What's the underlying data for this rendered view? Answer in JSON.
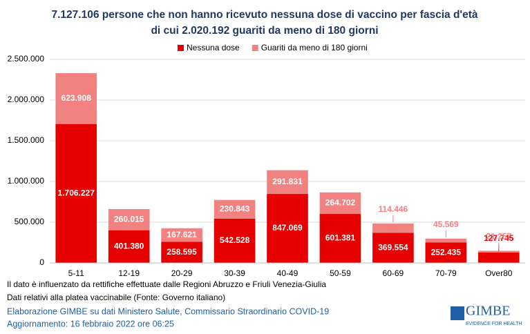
{
  "chart_data": {
    "type": "bar",
    "stacked": true,
    "title": "7.127.106 persone che non hanno ricevuto nessuna dose di vaccino per fascia d'età",
    "subtitle": "di cui 2.020.192 guariti da meno di 180 giorni",
    "categories": [
      "5-11",
      "12-19",
      "20-29",
      "30-39",
      "40-49",
      "50-59",
      "60-69",
      "70-79",
      "Over80"
    ],
    "series": [
      {
        "name": "Nessuna dose",
        "color": "#e60000",
        "values": [
          1706227,
          401380,
          258595,
          542528,
          847069,
          601381,
          369554,
          252435,
          127745
        ],
        "value_labels": [
          "1.706.227",
          "401.380",
          "258.595",
          "542.528",
          "847.069",
          "601.381",
          "369.554",
          "252.435",
          "127.745"
        ]
      },
      {
        "name": "Guariti da meno di 180 giorni",
        "color": "#f28282",
        "values": [
          623908,
          260015,
          167621,
          230843,
          291831,
          264702,
          114446,
          45569,
          21257
        ],
        "value_labels": [
          "623.908",
          "260.015",
          "167.621",
          "230.843",
          "291.831",
          "264.702",
          "114.446",
          "45.569",
          "21.257"
        ]
      }
    ],
    "ylim": [
      0,
      2500000
    ],
    "yticks": [
      0,
      {
        "value": 500000,
        "label": "500.000"
      },
      {
        "value": 1000000,
        "label": "1.000.000"
      },
      {
        "value": 1500000,
        "label": "1.500.000"
      },
      {
        "value": 2000000,
        "label": "2.000.000"
      },
      {
        "value": 2500000,
        "label": "2.500.000"
      }
    ],
    "grid": true,
    "legend": "top"
  },
  "notes": [
    "Il dato è influenzato da rettifiche effettuate dalle Regioni Abruzzo e Friuli Venezia-Giulia",
    "Dati relativi alla platea vaccinabile (Fonte: Governo italiano)"
  ],
  "source": [
    "Elaborazione GIMBE su dati Ministero Salute, Commissario Straordinario COVID-19",
    "Aggiornamento: 16 febbraio 2022 ore 06:25"
  ],
  "logo": {
    "name": "GIMBE",
    "tagline": "EVIDENCE FOR HEALTH"
  }
}
